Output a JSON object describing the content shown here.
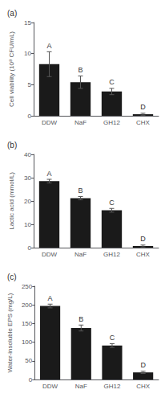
{
  "chart_data": [
    {
      "type": "bar",
      "title": "(a)",
      "ylabel": "Cell viability (10⁸ CFU/mL)",
      "categories": [
        "DDW",
        "NaF",
        "GH12",
        "CHX"
      ],
      "values": [
        8.3,
        5.4,
        3.9,
        0.25
      ],
      "errors": [
        2.0,
        1.0,
        0.5,
        0.15
      ],
      "annotations": [
        "A",
        "B",
        "C",
        "D"
      ],
      "color": "#1a1a1a",
      "ylim": [
        0,
        15
      ],
      "yticks": [
        0,
        5,
        10,
        15
      ],
      "grid": false
    },
    {
      "type": "bar",
      "title": "(b)",
      "ylabel": "Lactic acid (mmol/L)",
      "categories": [
        "DDW",
        "NaF",
        "GH12",
        "CHX"
      ],
      "values": [
        28.5,
        21.2,
        16.0,
        0.7
      ],
      "errors": [
        0.8,
        0.7,
        0.8,
        0.4
      ],
      "annotations": [
        "A",
        "B",
        "C",
        "D"
      ],
      "color": "#1a1a1a",
      "ylim": [
        0,
        40
      ],
      "yticks": [
        0,
        10,
        20,
        30,
        40
      ],
      "grid": false
    },
    {
      "type": "bar",
      "title": "(c)",
      "ylabel": "Water-insoluble EPS (mg/L)",
      "categories": [
        "DDW",
        "NaF",
        "GH12",
        "CHX"
      ],
      "values": [
        197,
        138,
        91,
        19
      ],
      "errors": [
        5,
        8,
        5,
        3
      ],
      "annotations": [
        "A",
        "B",
        "C",
        "D"
      ],
      "color": "#1a1a1a",
      "ylim": [
        0,
        250
      ],
      "yticks": [
        0,
        50,
        100,
        150,
        200,
        250
      ],
      "grid": false
    }
  ]
}
